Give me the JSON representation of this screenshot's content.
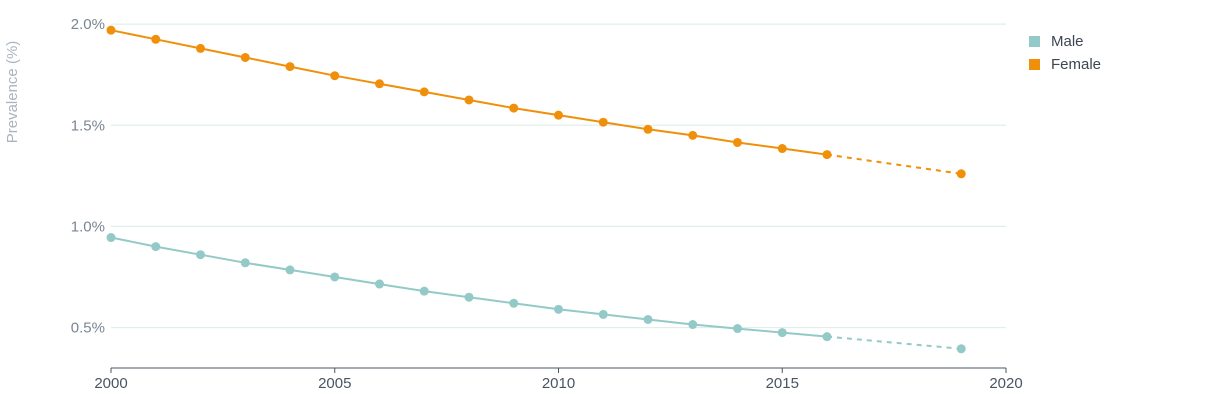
{
  "chart_data": {
    "type": "line",
    "title": "",
    "ylabel": "Prevalence (%)",
    "xlabel": "",
    "xlim": [
      2000,
      2020
    ],
    "ylim": [
      0.3,
      2.05
    ],
    "x_ticks": [
      "2000",
      "2005",
      "2010",
      "2015",
      "2020"
    ],
    "y_ticks": [
      "0.5%",
      "1.0%",
      "1.5%",
      "2.0%"
    ],
    "grid": true,
    "legend_position": "top-right",
    "series": [
      {
        "name": "Male",
        "color": "#93cac7",
        "points": [
          {
            "x": 2000,
            "y": 0.945
          },
          {
            "x": 2001,
            "y": 0.9
          },
          {
            "x": 2002,
            "y": 0.86
          },
          {
            "x": 2003,
            "y": 0.82
          },
          {
            "x": 2004,
            "y": 0.785
          },
          {
            "x": 2005,
            "y": 0.75
          },
          {
            "x": 2006,
            "y": 0.715
          },
          {
            "x": 2007,
            "y": 0.68
          },
          {
            "x": 2008,
            "y": 0.65
          },
          {
            "x": 2009,
            "y": 0.62
          },
          {
            "x": 2010,
            "y": 0.59
          },
          {
            "x": 2011,
            "y": 0.565
          },
          {
            "x": 2012,
            "y": 0.54
          },
          {
            "x": 2013,
            "y": 0.515
          },
          {
            "x": 2014,
            "y": 0.495
          },
          {
            "x": 2015,
            "y": 0.475
          },
          {
            "x": 2016,
            "y": 0.455
          },
          {
            "x": 2019,
            "y": 0.395
          }
        ],
        "dashed_after_x": 2016
      },
      {
        "name": "Female",
        "color": "#f0900a",
        "points": [
          {
            "x": 2000,
            "y": 1.97
          },
          {
            "x": 2001,
            "y": 1.925
          },
          {
            "x": 2002,
            "y": 1.88
          },
          {
            "x": 2003,
            "y": 1.835
          },
          {
            "x": 2004,
            "y": 1.79
          },
          {
            "x": 2005,
            "y": 1.745
          },
          {
            "x": 2006,
            "y": 1.705
          },
          {
            "x": 2007,
            "y": 1.665
          },
          {
            "x": 2008,
            "y": 1.625
          },
          {
            "x": 2009,
            "y": 1.585
          },
          {
            "x": 2010,
            "y": 1.55
          },
          {
            "x": 2011,
            "y": 1.515
          },
          {
            "x": 2012,
            "y": 1.48
          },
          {
            "x": 2013,
            "y": 1.45
          },
          {
            "x": 2014,
            "y": 1.415
          },
          {
            "x": 2015,
            "y": 1.385
          },
          {
            "x": 2016,
            "y": 1.355
          },
          {
            "x": 2019,
            "y": 1.26
          }
        ],
        "dashed_after_x": 2016
      }
    ]
  },
  "colors": {
    "grid": "#e0efec",
    "axis": "#4a5563"
  }
}
